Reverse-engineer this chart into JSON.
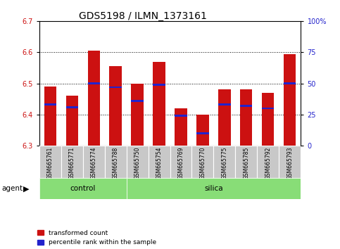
{
  "title": "GDS5198 / ILMN_1373161",
  "samples": [
    "GSM665761",
    "GSM665771",
    "GSM665774",
    "GSM665788",
    "GSM665750",
    "GSM665754",
    "GSM665769",
    "GSM665770",
    "GSM665775",
    "GSM665785",
    "GSM665792",
    "GSM665793"
  ],
  "groups": [
    "control",
    "control",
    "control",
    "control",
    "silica",
    "silica",
    "silica",
    "silica",
    "silica",
    "silica",
    "silica",
    "silica"
  ],
  "bar_bottom": 6.3,
  "transformed_counts": [
    6.49,
    6.46,
    6.605,
    6.555,
    6.5,
    6.57,
    6.42,
    6.4,
    6.48,
    6.48,
    6.47,
    6.595
  ],
  "percentile_ranks": [
    33,
    31,
    50,
    47,
    36,
    49,
    24,
    10,
    33,
    32,
    30,
    50
  ],
  "ylim_left": [
    6.3,
    6.7
  ],
  "ylim_right": [
    0,
    100
  ],
  "yticks_left": [
    6.3,
    6.4,
    6.5,
    6.6,
    6.7
  ],
  "yticks_right": [
    0,
    25,
    50,
    75,
    100
  ],
  "ytick_labels_right": [
    "0",
    "25",
    "50",
    "75",
    "100%"
  ],
  "bar_color": "#cc1111",
  "marker_color": "#2222cc",
  "bg_plot": "#ffffff",
  "control_color": "#88dd77",
  "silica_color": "#88dd77",
  "agent_label": "agent",
  "legend_items": [
    "transformed count",
    "percentile rank within the sample"
  ],
  "title_fontsize": 10,
  "tick_fontsize": 7,
  "bar_width": 0.55
}
